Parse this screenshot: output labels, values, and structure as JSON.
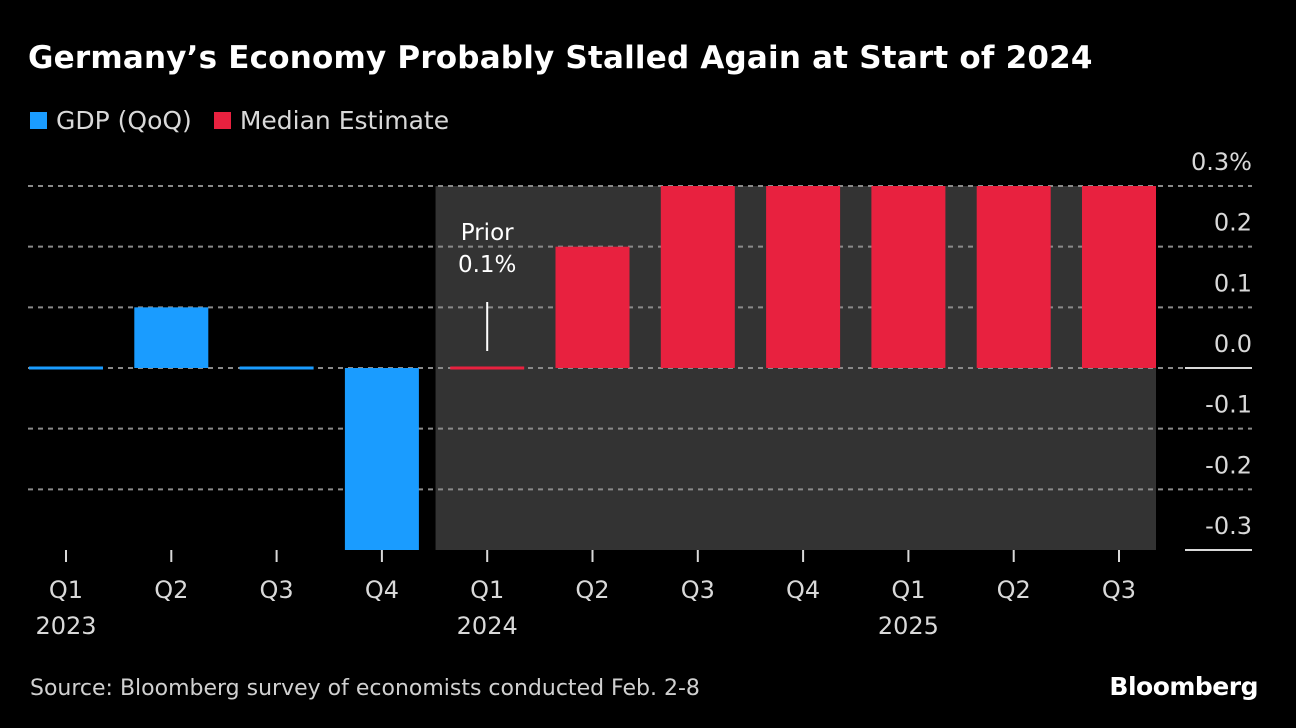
{
  "title": "Germany’s Economy Probably Stalled Again at Start of 2024",
  "legend": [
    {
      "label": "GDP (QoQ)",
      "color": "#1a9cff"
    },
    {
      "label": "Median Estimate",
      "color": "#e8213f"
    }
  ],
  "source": "Source: Bloomberg survey of economists conducted Feb. 2-8",
  "brand": "Bloomberg",
  "chart_data": {
    "type": "bar",
    "title": "Germany’s Economy Probably Stalled Again at Start of 2024",
    "xlabel": "",
    "ylabel": "",
    "categories": [
      "Q1 2023",
      "Q2 2023",
      "Q3 2023",
      "Q4 2023",
      "Q1 2024",
      "Q2 2024",
      "Q3 2024",
      "Q4 2024",
      "Q1 2025",
      "Q2 2025",
      "Q3 2025"
    ],
    "tick_labels": [
      {
        "quarter": "Q1",
        "year": "2023"
      },
      {
        "quarter": "Q2",
        "year": ""
      },
      {
        "quarter": "Q3",
        "year": ""
      },
      {
        "quarter": "Q4",
        "year": ""
      },
      {
        "quarter": "Q1",
        "year": "2024"
      },
      {
        "quarter": "Q2",
        "year": ""
      },
      {
        "quarter": "Q3",
        "year": ""
      },
      {
        "quarter": "Q4",
        "year": ""
      },
      {
        "quarter": "Q1",
        "year": "2025"
      },
      {
        "quarter": "Q2",
        "year": ""
      },
      {
        "quarter": "Q3",
        "year": ""
      }
    ],
    "series": [
      {
        "name": "GDP (QoQ)",
        "color": "#1a9cff",
        "values": [
          0.0,
          0.1,
          0.0,
          -0.3,
          null,
          null,
          null,
          null,
          null,
          null,
          null
        ]
      },
      {
        "name": "Median Estimate",
        "color": "#e8213f",
        "values": [
          null,
          null,
          null,
          null,
          0.0,
          0.2,
          0.3,
          0.3,
          0.3,
          0.3,
          0.3
        ]
      }
    ],
    "ylim": [
      -0.3,
      0.3
    ],
    "yticks": [
      {
        "value": 0.3,
        "label": "0.3%"
      },
      {
        "value": 0.2,
        "label": "0.2"
      },
      {
        "value": 0.1,
        "label": "0.1"
      },
      {
        "value": 0.0,
        "label": "0.0"
      },
      {
        "value": -0.1,
        "label": "-0.1"
      },
      {
        "value": -0.2,
        "label": "-0.2"
      },
      {
        "value": -0.3,
        "label": "-0.3"
      }
    ],
    "y_axis_position": "right",
    "grid": true,
    "legend_position": "top-left",
    "shaded_region": {
      "from_category": "Q1 2024",
      "to_category": "Q3 2025",
      "meaning": "forecast period"
    },
    "annotations": [
      {
        "category": "Q1 2024",
        "lines": [
          "Prior",
          "0.1%"
        ],
        "value": 0.1
      }
    ]
  }
}
